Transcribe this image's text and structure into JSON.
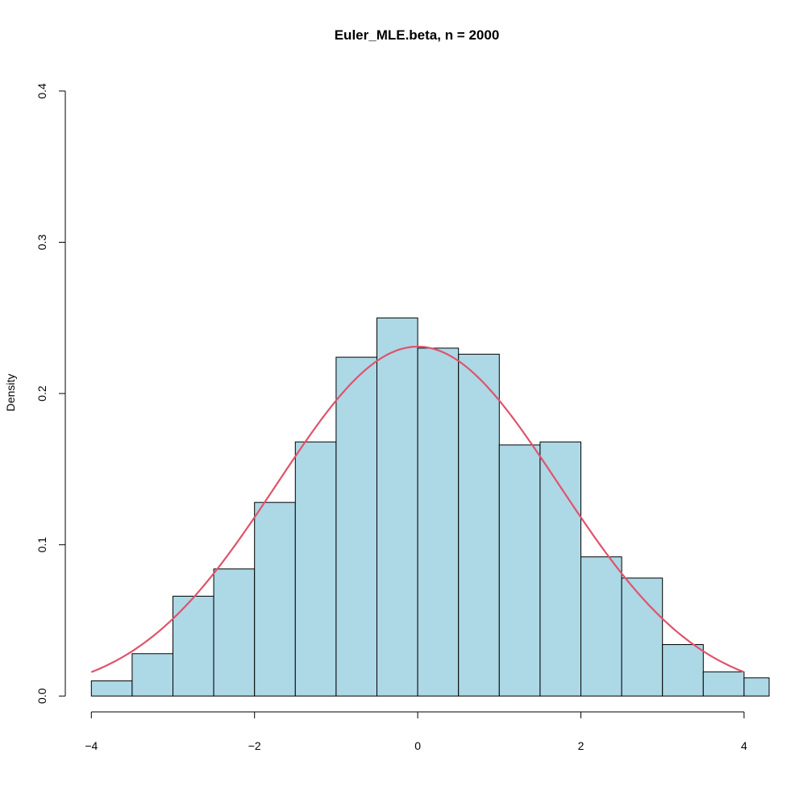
{
  "chart_data": {
    "type": "bar",
    "title": "Euler_MLE.beta, n = 2000",
    "xlabel": "",
    "ylabel": "Density",
    "xlim": [
      -4.2,
      4.3
    ],
    "ylim": [
      0,
      0.4
    ],
    "x_ticks": [
      -4,
      -2,
      0,
      2,
      4
    ],
    "y_ticks": [
      0.0,
      0.1,
      0.2,
      0.3,
      0.4
    ],
    "x_tick_labels": [
      "−4",
      "−2",
      "0",
      "2",
      "4"
    ],
    "y_tick_labels": [
      "0.0",
      "0.1",
      "0.2",
      "0.3",
      "0.4"
    ],
    "bins": [
      {
        "x0": -4.0,
        "x1": -3.5,
        "density": 0.01
      },
      {
        "x0": -3.5,
        "x1": -3.0,
        "density": 0.028
      },
      {
        "x0": -3.0,
        "x1": -2.5,
        "density": 0.066
      },
      {
        "x0": -2.5,
        "x1": -2.0,
        "density": 0.084
      },
      {
        "x0": -2.0,
        "x1": -1.5,
        "density": 0.128
      },
      {
        "x0": -1.5,
        "x1": -1.0,
        "density": 0.168
      },
      {
        "x0": -1.0,
        "x1": -0.5,
        "density": 0.224
      },
      {
        "x0": -0.5,
        "x1": 0.0,
        "density": 0.25
      },
      {
        "x0": 0.0,
        "x1": 0.5,
        "density": 0.23
      },
      {
        "x0": 0.5,
        "x1": 1.0,
        "density": 0.226
      },
      {
        "x0": 1.0,
        "x1": 1.5,
        "density": 0.166
      },
      {
        "x0": 1.5,
        "x1": 2.0,
        "density": 0.168
      },
      {
        "x0": 2.0,
        "x1": 2.5,
        "density": 0.092
      },
      {
        "x0": 2.5,
        "x1": 3.0,
        "density": 0.078
      },
      {
        "x0": 3.0,
        "x1": 3.5,
        "density": 0.034
      },
      {
        "x0": 3.5,
        "x1": 4.0,
        "density": 0.016
      },
      {
        "x0": 4.0,
        "x1": 4.5,
        "density": 0.012
      }
    ],
    "density_curve": {
      "type": "normal",
      "mean": 0.0,
      "sd": 1.727,
      "x_range": [
        -4,
        4
      ]
    },
    "bar_fill": "#add8e6",
    "curve_color": "#df536b",
    "grid": false
  }
}
